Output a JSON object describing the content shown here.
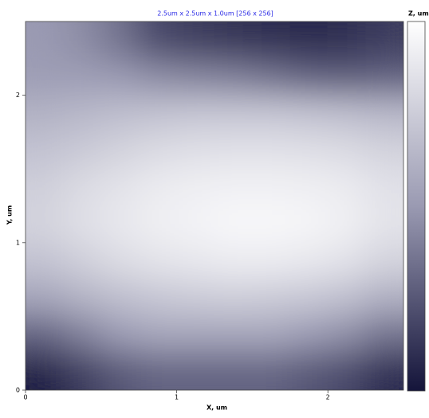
{
  "chart_data": {
    "type": "heatmap",
    "title": "2.5um x 2.5um x 1.0um [256 x 256]",
    "x_label": "X, um",
    "y_label": "Y, um",
    "colorbar_label": "Z, um",
    "x": [
      0.125,
      0.375,
      0.625,
      0.875,
      1.125,
      1.375,
      1.625,
      1.875,
      2.125,
      2.375
    ],
    "y": [
      0.125,
      0.375,
      0.625,
      0.875,
      1.125,
      1.375,
      1.625,
      1.875,
      2.125,
      2.375
    ],
    "z": [
      [
        0.05,
        0.15,
        0.25,
        0.3,
        0.3,
        0.3,
        0.3,
        0.25,
        0.2,
        0.1
      ],
      [
        0.3,
        0.4,
        0.5,
        0.55,
        0.55,
        0.55,
        0.55,
        0.5,
        0.45,
        0.35
      ],
      [
        0.55,
        0.62,
        0.68,
        0.72,
        0.74,
        0.75,
        0.74,
        0.72,
        0.68,
        0.6
      ],
      [
        0.7,
        0.76,
        0.82,
        0.86,
        0.88,
        0.9,
        0.9,
        0.88,
        0.85,
        0.78
      ],
      [
        0.78,
        0.84,
        0.88,
        0.92,
        0.94,
        0.96,
        0.96,
        0.95,
        0.92,
        0.86
      ],
      [
        0.76,
        0.82,
        0.86,
        0.9,
        0.92,
        0.93,
        0.93,
        0.92,
        0.9,
        0.85
      ],
      [
        0.7,
        0.74,
        0.78,
        0.82,
        0.84,
        0.85,
        0.85,
        0.84,
        0.82,
        0.78
      ],
      [
        0.62,
        0.65,
        0.68,
        0.7,
        0.72,
        0.72,
        0.72,
        0.7,
        0.68,
        0.65
      ],
      [
        0.52,
        0.52,
        0.5,
        0.45,
        0.42,
        0.4,
        0.35,
        0.3,
        0.28,
        0.3
      ],
      [
        0.5,
        0.45,
        0.35,
        0.2,
        0.15,
        0.12,
        0.1,
        0.08,
        0.1,
        0.15
      ]
    ],
    "zlim": [
      0,
      1.0
    ],
    "colormap": [
      "#14143a",
      "#9a9ab2",
      "#ffffff"
    ],
    "xlim": [
      0,
      2.5
    ],
    "ylim": [
      0,
      2.5
    ],
    "xticks": [
      0,
      1,
      2
    ],
    "yticks": [
      0,
      1,
      2
    ]
  }
}
